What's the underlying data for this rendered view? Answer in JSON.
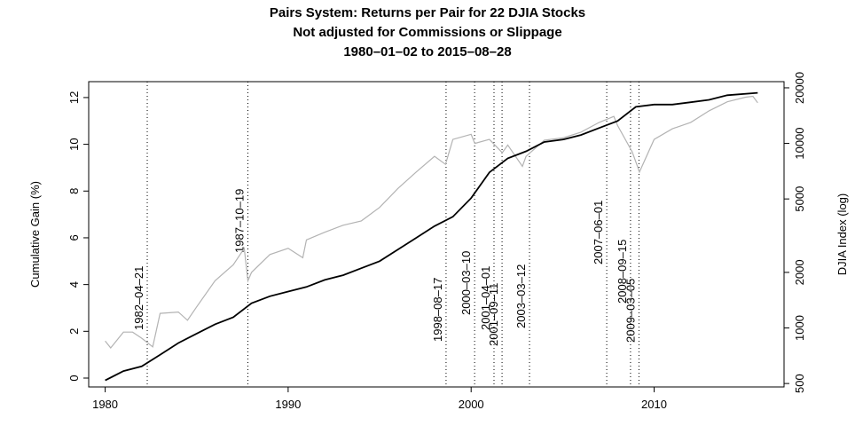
{
  "chart_data": {
    "type": "line",
    "title": [
      "Pairs System: Returns per Pair for 22 DJIA Stocks",
      "Not adjusted for Commissions or Slippage",
      "1980–01–02 to 2015–08–28"
    ],
    "ylabel": "Cumulative Gain (%)",
    "y2label": "DJIA Index (log)",
    "xlim": [
      1979.1,
      2017.1
    ],
    "xticks": [
      1980,
      1990,
      2000,
      2010
    ],
    "ylim": [
      -0.38,
      12.68
    ],
    "yticks": [
      0,
      2,
      4,
      6,
      8,
      10,
      12
    ],
    "y2lim": [
      479,
      21600
    ],
    "y2ticks": [
      500,
      1000,
      2000,
      5000,
      10000,
      20000
    ],
    "y2log": true,
    "series": [
      {
        "name": "Cumulative Gain",
        "color": "#000000",
        "axis": "y",
        "x": [
          1980,
          1981,
          1982,
          1983,
          1984,
          1985,
          1986,
          1987,
          1988,
          1989,
          1990,
          1991,
          1992,
          1993,
          1994,
          1995,
          1996,
          1997,
          1998,
          1999,
          2000,
          2001,
          2002,
          2003,
          2004,
          2005,
          2006,
          2007,
          2008,
          2009,
          2010,
          2011,
          2012,
          2013,
          2014,
          2015.66
        ],
        "values": [
          -0.1,
          0.3,
          0.5,
          1.0,
          1.5,
          1.9,
          2.3,
          2.6,
          3.2,
          3.5,
          3.7,
          3.9,
          4.2,
          4.4,
          4.7,
          5.0,
          5.5,
          6.0,
          6.5,
          6.9,
          7.7,
          8.8,
          9.4,
          9.7,
          10.1,
          10.2,
          10.4,
          10.7,
          11.0,
          11.6,
          11.7,
          11.7,
          11.8,
          11.9,
          12.1,
          12.2
        ]
      },
      {
        "name": "DJIA Index",
        "color": "#b3b3b3",
        "axis": "y2",
        "x": [
          1980,
          1980.3,
          1981,
          1981.5,
          1982,
          1982.6,
          1983,
          1984,
          1984.5,
          1985,
          1986,
          1987,
          1987.6,
          1987.8,
          1988,
          1989,
          1990,
          1990.8,
          1991,
          1992,
          1993,
          1994,
          1995,
          1996,
          1997,
          1998,
          1998.6,
          1999,
          2000,
          2000.2,
          2001,
          2001.7,
          2002,
          2002.8,
          2003,
          2004,
          2005,
          2006,
          2007,
          2007.8,
          2008,
          2008.8,
          2009.2,
          2010,
          2011,
          2012,
          2013,
          2014,
          2015,
          2015.4,
          2015.66
        ],
        "values": [
          850,
          780,
          950,
          950,
          880,
          790,
          1200,
          1220,
          1100,
          1300,
          1800,
          2200,
          2700,
          1800,
          2000,
          2500,
          2700,
          2400,
          3000,
          3300,
          3600,
          3800,
          4500,
          5700,
          7000,
          8500,
          7700,
          10500,
          11200,
          10000,
          10500,
          8900,
          9800,
          7500,
          8500,
          10400,
          10700,
          11500,
          13000,
          14000,
          12500,
          9000,
          7000,
          10500,
          12000,
          13000,
          15000,
          16800,
          17800,
          18000,
          16600
        ]
      }
    ],
    "events": [
      {
        "label": "1982–04–21",
        "x": 1982.3
      },
      {
        "label": "1987–10–19",
        "x": 1987.8
      },
      {
        "label": "1998–08–17",
        "x": 1998.63
      },
      {
        "label": "2000–03–10",
        "x": 2000.19
      },
      {
        "label": "2001–04–01",
        "x": 2001.25
      },
      {
        "label": "2001–09–11",
        "x": 2001.69
      },
      {
        "label": "2003–03–12",
        "x": 2003.19
      },
      {
        "label": "2007–06–01",
        "x": 2007.41
      },
      {
        "label": "2008–09–15",
        "x": 2008.71
      },
      {
        "label": "2009–03–05",
        "x": 2009.17
      }
    ]
  }
}
